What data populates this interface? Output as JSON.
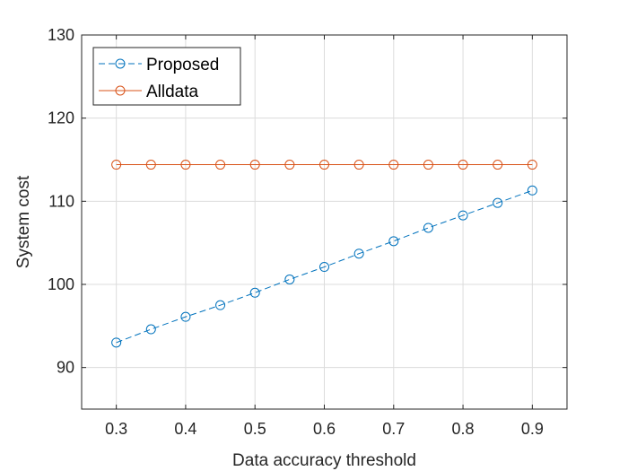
{
  "chart_data": {
    "type": "line",
    "xlabel": "Data accuracy threshold",
    "ylabel": "System cost",
    "xlim": [
      0.25,
      0.95
    ],
    "ylim": [
      85,
      130
    ],
    "xticks": [
      "0.3",
      "0.4",
      "0.5",
      "0.6",
      "0.7",
      "0.8",
      "0.9"
    ],
    "yticks": [
      "90",
      "100",
      "110",
      "120",
      "130"
    ],
    "grid": true,
    "legend": "top-left",
    "x": [
      0.3,
      0.35,
      0.4,
      0.45,
      0.5,
      0.55,
      0.6,
      0.65,
      0.7,
      0.75,
      0.8,
      0.85,
      0.9
    ],
    "series": [
      {
        "name": "Proposed",
        "color": "#0072BD",
        "line_style": "dashed",
        "marker": "circle",
        "values": [
          93.0,
          94.6,
          96.1,
          97.5,
          99.0,
          100.6,
          102.1,
          103.7,
          105.2,
          106.8,
          108.3,
          109.8,
          111.3
        ]
      },
      {
        "name": "Alldata",
        "color": "#D95319",
        "line_style": "solid",
        "marker": "circle",
        "values": [
          114.4,
          114.4,
          114.4,
          114.4,
          114.4,
          114.4,
          114.4,
          114.4,
          114.4,
          114.4,
          114.4,
          114.4,
          114.4
        ]
      }
    ]
  }
}
